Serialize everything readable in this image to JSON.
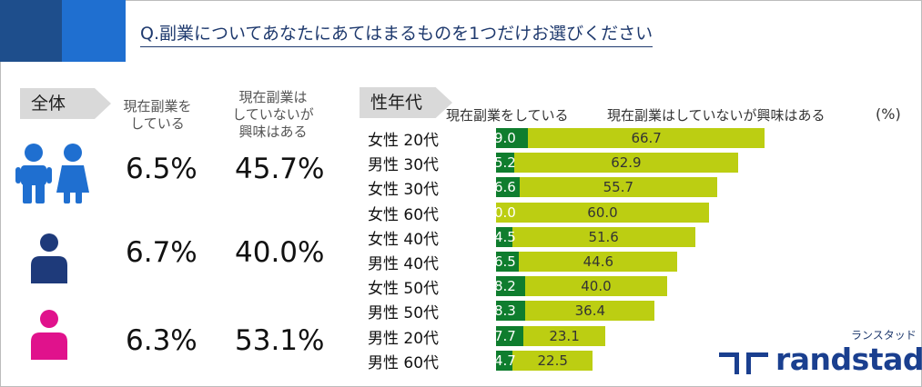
{
  "question": "Q.副業についてあなたにあてはまるものを1つだけお選びください",
  "overall": {
    "tag": "全体",
    "col1_line1": "現在副業を",
    "col1_line2": "している",
    "col2_line1": "現在副業は",
    "col2_line2": "していないが",
    "col2_line3": "興味はある",
    "rows": [
      {
        "icon": "couple-icon",
        "color": "#1f6fd0",
        "side_job": "6.5%",
        "interested": "45.7%"
      },
      {
        "icon": "male-icon",
        "color": "#1e3a7a",
        "side_job": "6.7%",
        "interested": "40.0%"
      },
      {
        "icon": "female-icon",
        "color": "#e0128c",
        "side_job": "6.3%",
        "interested": "53.1%"
      }
    ]
  },
  "breakdown_tag": "性年代",
  "chart_data": {
    "type": "bar",
    "orientation": "horizontal",
    "stacked": true,
    "categories": [
      "女性 20代",
      "男性 30代",
      "女性 30代",
      "女性 60代",
      "女性 40代",
      "男性 40代",
      "女性 50代",
      "男性 50代",
      "男性 20代",
      "男性 60代"
    ],
    "series": [
      {
        "name": "現在副業をしている",
        "color": "#0f7d2e",
        "values": [
          9.0,
          5.2,
          6.6,
          0.0,
          4.5,
          6.5,
          8.2,
          8.3,
          7.7,
          4.7
        ]
      },
      {
        "name": "現在副業はしていないが興味はある",
        "color": "#bcce12",
        "values": [
          66.7,
          62.9,
          55.7,
          60.0,
          51.6,
          44.6,
          40.0,
          36.4,
          23.1,
          22.5
        ]
      }
    ],
    "data_labels_a": [
      "9.0",
      "5.2",
      "6.6",
      "0.0",
      "4.5",
      "6.5",
      "8.2",
      "8.3",
      "7.7",
      "4.7"
    ],
    "data_labels_b": [
      "66.7",
      "62.9",
      "55.7",
      "60.0",
      "51.6",
      "44.6",
      "40.0",
      "36.4",
      "23.1",
      "22.5"
    ],
    "unit": "(%)"
  },
  "logo": {
    "kana": "ランスタッド",
    "text": "randstad"
  }
}
